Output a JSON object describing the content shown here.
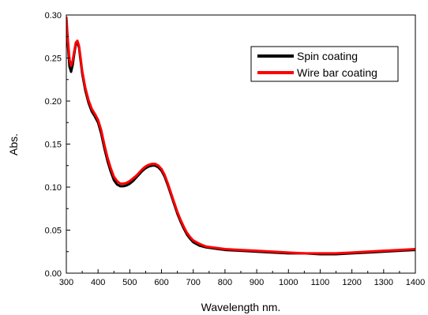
{
  "chart_data": {
    "type": "line",
    "xlabel": "Wavelength nm.",
    "ylabel": "Abs.",
    "xlim": [
      300,
      1400
    ],
    "ylim": [
      0.0,
      0.3
    ],
    "x_ticks": [
      "300",
      "400",
      "500",
      "600",
      "700",
      "800",
      "900",
      "1000",
      "1100",
      "1200",
      "1300",
      "1400"
    ],
    "y_ticks": [
      "0.00",
      "0.05",
      "0.10",
      "0.15",
      "0.20",
      "0.25",
      "0.30"
    ],
    "grid": false,
    "legend_position": "top-right",
    "series": [
      {
        "name": "Spin coating",
        "color": "#000000",
        "x": [
          300,
          305,
          310,
          315,
          320,
          325,
          330,
          335,
          340,
          345,
          350,
          360,
          370,
          380,
          390,
          400,
          410,
          420,
          430,
          440,
          450,
          460,
          470,
          480,
          490,
          500,
          510,
          520,
          530,
          540,
          550,
          560,
          570,
          580,
          590,
          600,
          610,
          620,
          630,
          640,
          650,
          660,
          670,
          680,
          690,
          700,
          720,
          740,
          760,
          780,
          800,
          850,
          900,
          950,
          1000,
          1050,
          1100,
          1150,
          1200,
          1250,
          1300,
          1350,
          1400
        ],
        "y": [
          0.295,
          0.265,
          0.24,
          0.234,
          0.242,
          0.255,
          0.266,
          0.268,
          0.262,
          0.247,
          0.232,
          0.212,
          0.198,
          0.188,
          0.182,
          0.175,
          0.162,
          0.145,
          0.13,
          0.118,
          0.108,
          0.103,
          0.101,
          0.101,
          0.102,
          0.104,
          0.107,
          0.111,
          0.115,
          0.119,
          0.122,
          0.124,
          0.125,
          0.125,
          0.123,
          0.119,
          0.112,
          0.102,
          0.091,
          0.08,
          0.069,
          0.06,
          0.052,
          0.045,
          0.04,
          0.036,
          0.032,
          0.03,
          0.029,
          0.028,
          0.027,
          0.026,
          0.025,
          0.024,
          0.023,
          0.023,
          0.022,
          0.022,
          0.023,
          0.024,
          0.025,
          0.026,
          0.027
        ]
      },
      {
        "name": "Wire bar coating",
        "color": "#ff0000",
        "x": [
          300,
          305,
          310,
          315,
          320,
          325,
          330,
          335,
          340,
          345,
          350,
          360,
          370,
          380,
          390,
          400,
          410,
          420,
          430,
          440,
          450,
          460,
          470,
          480,
          490,
          500,
          510,
          520,
          530,
          540,
          550,
          560,
          570,
          580,
          590,
          600,
          610,
          620,
          630,
          640,
          650,
          660,
          670,
          680,
          690,
          700,
          720,
          740,
          760,
          780,
          800,
          850,
          900,
          950,
          1000,
          1050,
          1100,
          1150,
          1200,
          1250,
          1300,
          1350,
          1400
        ],
        "y": [
          0.298,
          0.27,
          0.248,
          0.241,
          0.247,
          0.258,
          0.268,
          0.27,
          0.264,
          0.25,
          0.235,
          0.215,
          0.201,
          0.191,
          0.185,
          0.178,
          0.166,
          0.149,
          0.134,
          0.122,
          0.112,
          0.107,
          0.104,
          0.104,
          0.105,
          0.107,
          0.11,
          0.113,
          0.117,
          0.121,
          0.124,
          0.126,
          0.127,
          0.127,
          0.125,
          0.121,
          0.114,
          0.104,
          0.093,
          0.082,
          0.071,
          0.062,
          0.054,
          0.047,
          0.042,
          0.038,
          0.034,
          0.031,
          0.03,
          0.029,
          0.028,
          0.027,
          0.026,
          0.025,
          0.024,
          0.023,
          0.023,
          0.023,
          0.024,
          0.025,
          0.026,
          0.027,
          0.028
        ]
      }
    ]
  }
}
